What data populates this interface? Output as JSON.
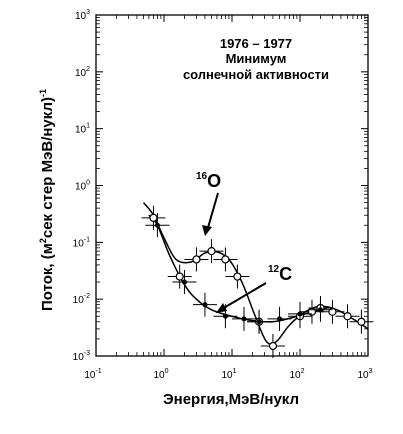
{
  "chart_data": {
    "type": "scatter",
    "title": "",
    "xlabel": "Энергия,МэВ/нукл",
    "ylabel_prefix": "Поток, (м",
    "ylabel_sup1": "2",
    "ylabel_mid": "сек стер МэВ/нукл)",
    "ylabel_sup2": "-1",
    "x_scale": "log",
    "y_scale": "log",
    "xlim": [
      0.1,
      1000
    ],
    "ylim": [
      0.001,
      1000
    ],
    "x_ticks": [
      {
        "base": "10",
        "exp": "-1"
      },
      {
        "base": "10",
        "exp": "0"
      },
      {
        "base": "10",
        "exp": "1"
      },
      {
        "base": "10",
        "exp": "2"
      },
      {
        "base": "10",
        "exp": "3"
      }
    ],
    "y_ticks": [
      {
        "base": "10",
        "exp": "-3"
      },
      {
        "base": "10",
        "exp": "-2"
      },
      {
        "base": "10",
        "exp": "-1"
      },
      {
        "base": "10",
        "exp": "0"
      },
      {
        "base": "10",
        "exp": "1"
      },
      {
        "base": "10",
        "exp": "2"
      },
      {
        "base": "10",
        "exp": "3"
      }
    ],
    "annotation": [
      "1976 – 1977",
      "Минимум",
      "солнечной активности"
    ],
    "grid": false,
    "series": [
      {
        "name_mass": "16",
        "name_elem": "O",
        "marker": "open-circle",
        "points": [
          {
            "x": 0.7,
            "y": 0.27
          },
          {
            "x": 1.7,
            "y": 0.025
          },
          {
            "x": 3.0,
            "y": 0.05
          },
          {
            "x": 5.0,
            "y": 0.07
          },
          {
            "x": 8.0,
            "y": 0.05
          },
          {
            "x": 12.0,
            "y": 0.025
          },
          {
            "x": 25.0,
            "y": 0.004
          },
          {
            "x": 40.0,
            "y": 0.0015
          },
          {
            "x": 100.0,
            "y": 0.005
          },
          {
            "x": 150.0,
            "y": 0.006
          },
          {
            "x": 200.0,
            "y": 0.007
          },
          {
            "x": 300.0,
            "y": 0.006
          },
          {
            "x": 500.0,
            "y": 0.005
          },
          {
            "x": 800.0,
            "y": 0.004
          }
        ],
        "curve": [
          {
            "x": 0.5,
            "y": 0.5
          },
          {
            "x": 0.7,
            "y": 0.3
          },
          {
            "x": 1.0,
            "y": 0.12
          },
          {
            "x": 1.5,
            "y": 0.05
          },
          {
            "x": 2.5,
            "y": 0.045
          },
          {
            "x": 4.0,
            "y": 0.065
          },
          {
            "x": 6.0,
            "y": 0.068
          },
          {
            "x": 9.0,
            "y": 0.05
          },
          {
            "x": 14.0,
            "y": 0.02
          },
          {
            "x": 22.0,
            "y": 0.005
          },
          {
            "x": 32.0,
            "y": 0.0018
          },
          {
            "x": 45.0,
            "y": 0.0018
          },
          {
            "x": 70.0,
            "y": 0.0035
          },
          {
            "x": 120.0,
            "y": 0.006
          },
          {
            "x": 200.0,
            "y": 0.0075
          },
          {
            "x": 350.0,
            "y": 0.0065
          },
          {
            "x": 600.0,
            "y": 0.0045
          },
          {
            "x": 1000.0,
            "y": 0.003
          }
        ]
      },
      {
        "name_mass": "12",
        "name_elem": "C",
        "marker": "filled-dot",
        "points": [
          {
            "x": 0.8,
            "y": 0.2
          },
          {
            "x": 2.0,
            "y": 0.02
          },
          {
            "x": 4.0,
            "y": 0.008
          },
          {
            "x": 8.0,
            "y": 0.005
          },
          {
            "x": 15.0,
            "y": 0.0045
          },
          {
            "x": 25.0,
            "y": 0.004
          },
          {
            "x": 50.0,
            "y": 0.0045
          },
          {
            "x": 100.0,
            "y": 0.0055
          },
          {
            "x": 200.0,
            "y": 0.0065
          }
        ],
        "curve": [
          {
            "x": 0.6,
            "y": 0.3
          },
          {
            "x": 0.8,
            "y": 0.2
          },
          {
            "x": 1.2,
            "y": 0.06
          },
          {
            "x": 2.0,
            "y": 0.018
          },
          {
            "x": 3.0,
            "y": 0.01
          },
          {
            "x": 5.0,
            "y": 0.0065
          },
          {
            "x": 10.0,
            "y": 0.005
          },
          {
            "x": 20.0,
            "y": 0.0042
          },
          {
            "x": 40.0,
            "y": 0.004
          },
          {
            "x": 80.0,
            "y": 0.0048
          },
          {
            "x": 150.0,
            "y": 0.006
          },
          {
            "x": 250.0,
            "y": 0.007
          }
        ]
      }
    ]
  }
}
